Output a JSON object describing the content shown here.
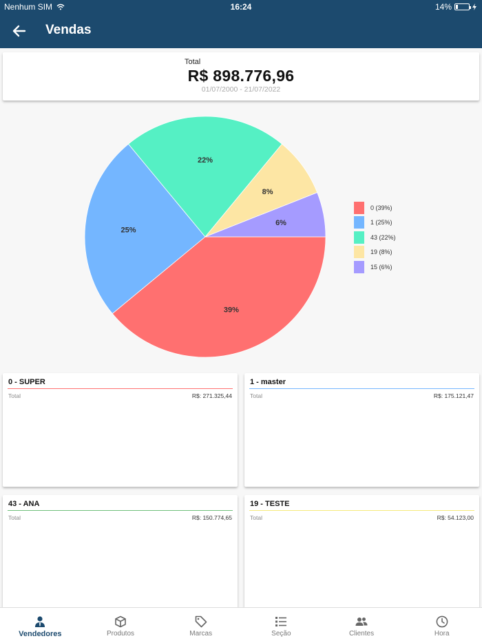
{
  "status_bar": {
    "carrier": "Nenhum SIM",
    "time": "16:24",
    "battery": "14%",
    "battery_level": 0.14
  },
  "app_bar": {
    "title": "Vendas"
  },
  "summary": {
    "label": "Total",
    "value": "R$ 898.776,96",
    "period": "01/07/2000 - 21/07/2022"
  },
  "chart_data": {
    "type": "pie",
    "slices": [
      {
        "label": "0",
        "value": 39,
        "color": "#ff7070",
        "legend": "0 (39%)",
        "text": "39%"
      },
      {
        "label": "1",
        "value": 25,
        "color": "#74b6ff",
        "legend": "1 (25%)",
        "text": "25%"
      },
      {
        "label": "43",
        "value": 22,
        "color": "#55f0c4",
        "legend": "43 (22%)",
        "text": "22%"
      },
      {
        "label": "19",
        "value": 8,
        "color": "#fde6a4",
        "legend": "19 (8%)",
        "text": "8%"
      },
      {
        "label": "15",
        "value": 6,
        "color": "#a59bff",
        "legend": "15 (6%)",
        "text": "6%"
      }
    ],
    "legend_position": "right"
  },
  "sellers": [
    {
      "name": "0 - SUPER",
      "total_label": "Total",
      "total": "R$: 271.325,44",
      "color": "#ff7070"
    },
    {
      "name": "1 - master",
      "total_label": "Total",
      "total": "R$: 175.121,47",
      "color": "#74b6ff"
    },
    {
      "name": "43 - ANA",
      "total_label": "Total",
      "total": "R$: 150.774,65",
      "color": "#6fbf7a"
    },
    {
      "name": "19 - TESTE",
      "total_label": "Total",
      "total": "R$: 54.123,00",
      "color": "#f5e97a"
    }
  ],
  "nav": {
    "items": [
      {
        "label": "Vendedores",
        "icon": "person-icon",
        "active": true
      },
      {
        "label": "Produtos",
        "icon": "box-icon"
      },
      {
        "label": "Marcas",
        "icon": "tag-icon"
      },
      {
        "label": "Seção",
        "icon": "list-icon"
      },
      {
        "label": "Clientes",
        "icon": "people-icon"
      },
      {
        "label": "Hora",
        "icon": "clock-icon"
      }
    ]
  }
}
